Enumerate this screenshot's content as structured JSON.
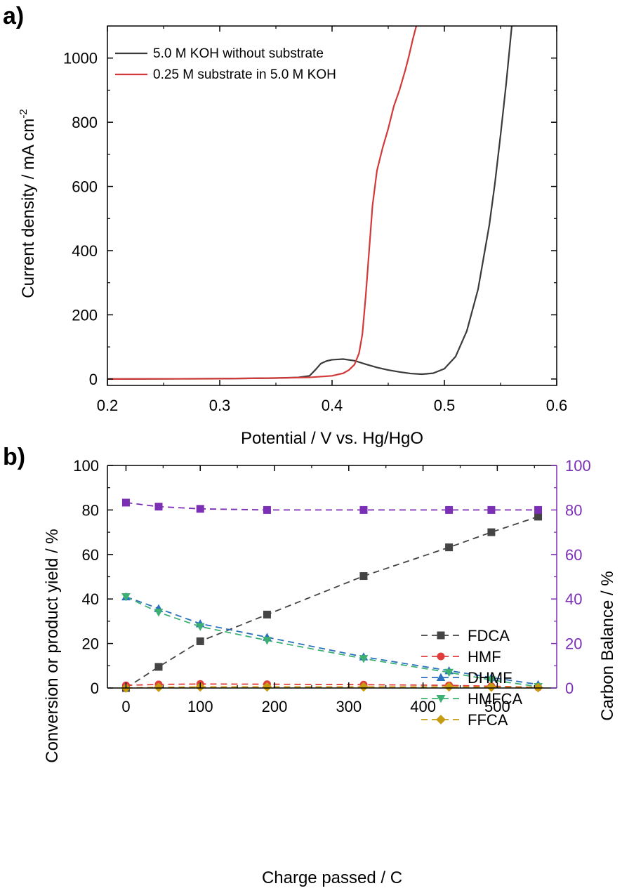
{
  "panels": {
    "a": {
      "label": "a)"
    },
    "b": {
      "label": "b)"
    }
  },
  "chart_data": [
    {
      "type": "line",
      "xlabel": "Potential / V vs. Hg/HgO",
      "ylabel_main": "Current density / mA cm",
      "ylabel_sup": "-2",
      "xlim": [
        0.2,
        0.6
      ],
      "ylim": [
        -20,
        1100
      ],
      "xticks": [
        0.2,
        0.3,
        0.4,
        0.5,
        0.6
      ],
      "xtick_labels": [
        "0.2",
        "0.3",
        "0.4",
        "0.5",
        "0.6"
      ],
      "yticks": [
        0,
        200,
        400,
        600,
        800,
        1000
      ],
      "ytick_labels": [
        "0",
        "200",
        "400",
        "600",
        "800",
        "1000"
      ],
      "legend_position": "top-left",
      "series": [
        {
          "name": "5.0 M KOH without substrate",
          "color": "#3a3a3a",
          "x": [
            0.2,
            0.3,
            0.35,
            0.37,
            0.38,
            0.385,
            0.39,
            0.395,
            0.4,
            0.41,
            0.42,
            0.43,
            0.44,
            0.45,
            0.46,
            0.47,
            0.48,
            0.49,
            0.5,
            0.51,
            0.52,
            0.53,
            0.54,
            0.545,
            0.55,
            0.555,
            0.56
          ],
          "y": [
            0,
            1,
            3,
            5,
            10,
            28,
            48,
            56,
            60,
            62,
            57,
            46,
            36,
            28,
            22,
            17,
            15,
            18,
            32,
            70,
            150,
            280,
            480,
            610,
            760,
            920,
            1100
          ]
        },
        {
          "name": "0.25 M substrate in 5.0 M KOH",
          "color": "#d23a3a",
          "x": [
            0.2,
            0.3,
            0.35,
            0.38,
            0.4,
            0.41,
            0.415,
            0.42,
            0.424,
            0.427,
            0.43,
            0.433,
            0.436,
            0.44,
            0.445,
            0.45,
            0.455,
            0.46,
            0.465,
            0.468,
            0.472,
            0.475
          ],
          "y": [
            0,
            1,
            3,
            5,
            10,
            18,
            28,
            45,
            80,
            140,
            260,
            400,
            540,
            650,
            720,
            780,
            850,
            900,
            960,
            1000,
            1060,
            1100
          ]
        }
      ]
    },
    {
      "type": "line",
      "xlabel": "Charge passed / C",
      "ylabel": "Conversion or product yield / %",
      "ylabel_right": "Carbon Balance / %",
      "xlim": [
        -25,
        580
      ],
      "ylim": [
        0,
        100
      ],
      "ylim_right": [
        0,
        100
      ],
      "xticks": [
        0,
        100,
        200,
        300,
        400,
        500
      ],
      "xtick_labels": [
        "0",
        "100",
        "200",
        "300",
        "400",
        "500"
      ],
      "yticks": [
        0,
        20,
        40,
        60,
        80,
        100
      ],
      "ytick_labels": [
        "0",
        "20",
        "40",
        "60",
        "80",
        "100"
      ],
      "ytick_labels_right": [
        "0",
        "20",
        "40",
        "60",
        "80",
        "100"
      ],
      "right_axis_color": "#7b2fb5",
      "legend_position": "center-right",
      "x": [
        0,
        44,
        100,
        190,
        320,
        435,
        492,
        555
      ],
      "series": [
        {
          "name": "FDCA",
          "color": "#444444",
          "marker": "square",
          "values": [
            0,
            9.5,
            21,
            33,
            50.3,
            63.2,
            70,
            77
          ]
        },
        {
          "name": "HMF",
          "color": "#e03c3c",
          "marker": "circle",
          "values": [
            1.2,
            1.6,
            1.8,
            1.7,
            1.5,
            1.2,
            0.8,
            0.3
          ]
        },
        {
          "name": "DHMF",
          "color": "#2a6fc0",
          "marker": "triangle-up",
          "values": [
            41,
            35.7,
            28.9,
            22.8,
            14,
            7.8,
            4.7,
            1.6
          ]
        },
        {
          "name": "HMFCA",
          "color": "#3bb070",
          "marker": "triangle-down",
          "values": [
            41,
            34,
            27.6,
            21.4,
            13.2,
            7,
            3.6,
            0.6
          ]
        },
        {
          "name": "FFCA",
          "color": "#c79c10",
          "marker": "diamond",
          "values": [
            0,
            0.3,
            0.5,
            0.5,
            0.5,
            0.5,
            0.4,
            0.2
          ]
        },
        {
          "name": "",
          "axis": "right",
          "color": "#7b2fb5",
          "marker": "square",
          "values": [
            83.3,
            81.5,
            80.5,
            80,
            80,
            80,
            80,
            80
          ]
        }
      ]
    }
  ]
}
